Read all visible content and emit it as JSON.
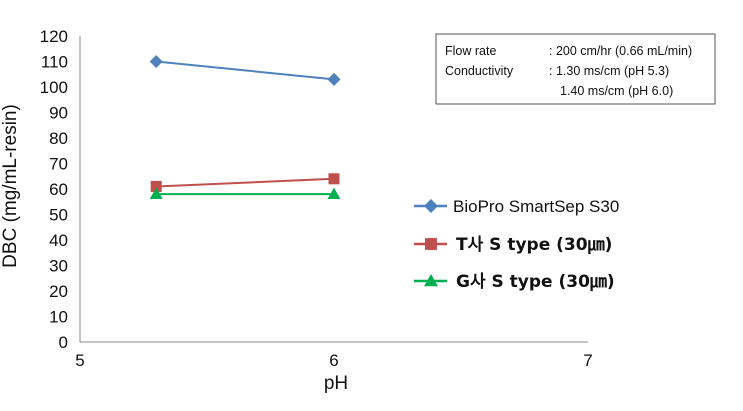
{
  "chart_data": {
    "type": "line",
    "title": "",
    "xlabel": "pH",
    "ylabel": "DBC (mg/mL-resin)",
    "xlim": [
      5,
      7
    ],
    "ylim": [
      0,
      120
    ],
    "x_ticks": [
      "5",
      "6",
      "7"
    ],
    "y_ticks": [
      "0",
      "10",
      "20",
      "30",
      "40",
      "50",
      "60",
      "70",
      "80",
      "90",
      "100",
      "110",
      "120"
    ],
    "grid": false,
    "legend_position": "right",
    "series": [
      {
        "name": "BioPro SmartSep S30",
        "color": "#4f81bd",
        "marker": "diamond",
        "x": [
          5.3,
          6.0
        ],
        "y": [
          110,
          103
        ]
      },
      {
        "name": "T사 S type (30㎛)",
        "color": "#c0504d",
        "marker": "square",
        "x": [
          5.3,
          6.0
        ],
        "y": [
          61,
          64
        ]
      },
      {
        "name": "G사 S type (30㎛)",
        "color": "#00b050",
        "marker": "triangle",
        "x": [
          5.3,
          6.0
        ],
        "y": [
          58,
          58
        ]
      }
    ],
    "annotation": {
      "rows": [
        {
          "label": "Flow rate",
          "value": ": 200 cm/hr (0.66 mL/min)"
        },
        {
          "label": "Conductivity",
          "value": ": 1.30 ms/cm (pH 5.3)"
        },
        {
          "label": "",
          "value": "1.40 ms/cm (pH 6.0)"
        }
      ]
    }
  }
}
